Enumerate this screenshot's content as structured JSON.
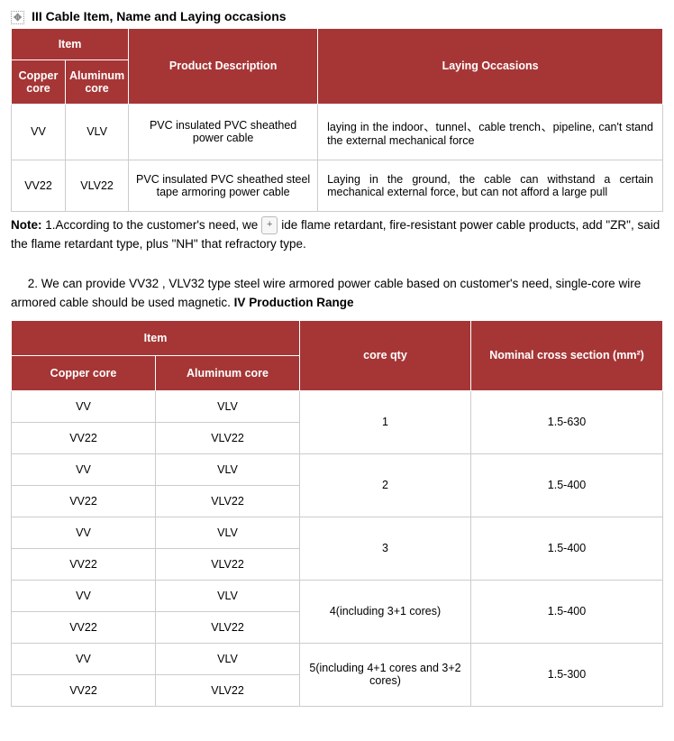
{
  "colors": {
    "header_bg": "#A63636",
    "header_fg": "#ffffff",
    "cell_border": "#cccccc"
  },
  "section1": {
    "prefix": "III",
    "title": "Cable Item, Name and Laying occasions"
  },
  "table1": {
    "headers": {
      "item": "Item",
      "copper": "Copper core",
      "aluminum": "Aluminum core",
      "desc": "Product Description",
      "laying": "Laying Occasions"
    },
    "rows": [
      {
        "cu": "VV",
        "al": "VLV",
        "desc": "PVC insulated PVC sheathed power cable",
        "lay": "laying in the indoor、tunnel、cable trench、pipeline, can't stand the external mechanical force"
      },
      {
        "cu": "VV22",
        "al": "VLV22",
        "desc": "PVC insulated PVC sheathed steel tape armoring power cable",
        "lay": "Laying in the ground, the cable can withstand a certain mechanical external force, but can not afford a large pull"
      }
    ]
  },
  "note": {
    "label": "Note:",
    "p1a": "1.According to the customer's need, we",
    "pill": "+",
    "p1b": "ide flame retardant, fire-resistant power cable products, add \"ZR\", said the flame retardant type, plus \"NH\" that refractory type.",
    "p2": "2. We can provide VV32 , VLV32 type steel wire armored power cable based on customer's need, single-core wire armored cable should be used magnetic."
  },
  "section2": {
    "prefix": "IV",
    "title": "Production Range"
  },
  "table2": {
    "headers": {
      "item": "Item",
      "copper": "Copper core",
      "aluminum": "Aluminum core",
      "core_qty": "core qty",
      "nominal": "Nominal cross section (mm²)"
    },
    "groups": [
      {
        "r1cu": "VV",
        "r1al": "VLV",
        "r2cu": "VV22",
        "r2al": "VLV22",
        "qty": "1",
        "cross": "1.5-630"
      },
      {
        "r1cu": "VV",
        "r1al": "VLV",
        "r2cu": "VV22",
        "r2al": "VLV22",
        "qty": "2",
        "cross": "1.5-400"
      },
      {
        "r1cu": "VV",
        "r1al": "VLV",
        "r2cu": "VV22",
        "r2al": "VLV22",
        "qty": "3",
        "cross": "1.5-400"
      },
      {
        "r1cu": "VV",
        "r1al": "VLV",
        "r2cu": "VV22",
        "r2al": "VLV22",
        "qty": "4(including 3+1 cores)",
        "cross": "1.5-400"
      },
      {
        "r1cu": "VV",
        "r1al": "VLV",
        "r2cu": "VV22",
        "r2al": "VLV22",
        "qty": "5(including 4+1 cores and 3+2 cores)",
        "cross": "1.5-300"
      }
    ]
  }
}
